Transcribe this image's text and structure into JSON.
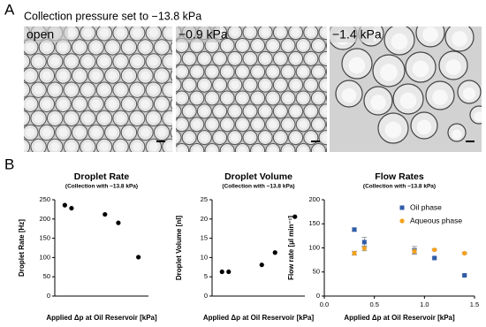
{
  "panel_a": {
    "label": "A",
    "title": "Collection pressure set to −13.8 kPa",
    "images": [
      {
        "label": "open"
      },
      {
        "label": "−0.9 kPa"
      },
      {
        "label": "−1.4 kPa"
      }
    ]
  },
  "panel_b": {
    "label": "B"
  },
  "chart_data": [
    {
      "type": "scatter",
      "title": "Droplet Rate",
      "subtitle": "(Collection with −13.8 kPa)",
      "x_label": "Applied Δp at Oil Reservoir [kPa]",
      "y_label": "Droplet Rate [Hz]",
      "x": [
        0.3,
        0.4,
        0.9,
        1.1,
        1.4
      ],
      "values": [
        236,
        228,
        212,
        190,
        101
      ],
      "color": "#000000",
      "xlim": [
        0.15,
        1.55
      ],
      "ylim": [
        0,
        250
      ],
      "yticks": [
        0,
        50,
        100,
        150,
        200,
        250
      ]
    },
    {
      "type": "scatter",
      "title": "Droplet Volume",
      "subtitle": "(Collection with −13.8 kPa)",
      "x_label": "Applied Δp at Oil Reservoir [kPa]",
      "y_label": "Droplet Volume [nl]",
      "x": [
        0.3,
        0.4,
        0.9,
        1.1,
        1.4
      ],
      "values": [
        6.3,
        6.3,
        8.1,
        11.3,
        20.6
      ],
      "color": "#000000",
      "xlim": [
        0.15,
        1.55
      ],
      "ylim": [
        0,
        25
      ],
      "yticks": [
        0,
        5,
        10,
        15,
        20,
        25
      ]
    },
    {
      "type": "scatter",
      "title": "Flow Rates",
      "subtitle": "(Collection with −13.8 kPa)",
      "x_label": "Applied Δp at Oil Reservoir [kPa]",
      "y_label": "Flow rate [µl min⁻¹]",
      "x": [
        0.3,
        0.4,
        0.9,
        1.1,
        1.4
      ],
      "series": [
        {
          "name": "Oil phase",
          "color": "#2f5ca8",
          "marker": "square",
          "values": [
            138,
            112,
            95,
            79,
            43
          ],
          "errors": [
            3,
            10,
            8,
            2,
            2
          ]
        },
        {
          "name": "Aqueous phase",
          "color": "#f5a11c",
          "marker": "circle",
          "values": [
            89,
            99,
            93,
            96,
            89
          ],
          "errors": [
            4,
            5,
            5,
            2,
            2
          ]
        }
      ],
      "xlim": [
        0,
        1.5
      ],
      "xticks": [
        {
          "value": 0,
          "label": "0.0"
        },
        0.5,
        {
          "value": 1,
          "label": "1.0"
        },
        1.5
      ],
      "ylim": [
        0,
        200
      ],
      "yticks": [
        0,
        50,
        100,
        150,
        200
      ],
      "legend": "top-right"
    }
  ]
}
